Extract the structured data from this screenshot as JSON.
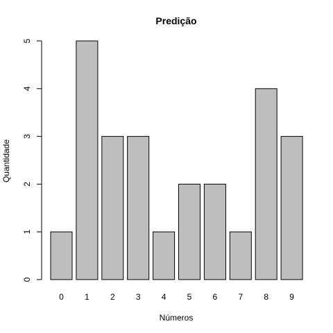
{
  "chart_data": {
    "type": "bar",
    "title": "Predição",
    "xlabel": "Números",
    "ylabel": "Quantidade",
    "categories": [
      "0",
      "1",
      "2",
      "3",
      "4",
      "5",
      "6",
      "7",
      "8",
      "9"
    ],
    "values": [
      1,
      5,
      3,
      3,
      1,
      2,
      2,
      1,
      4,
      3
    ],
    "yticks": [
      0,
      1,
      2,
      3,
      4,
      5
    ],
    "ylim": [
      0,
      5
    ],
    "grid": false,
    "bar_color": "#bebebe",
    "bar_border_color": "#000000"
  }
}
